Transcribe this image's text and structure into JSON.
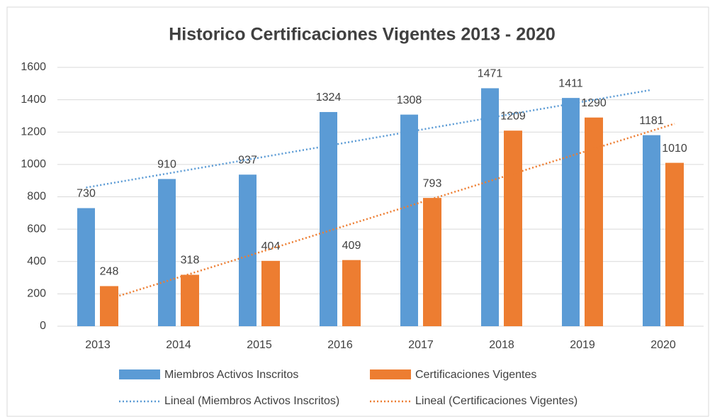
{
  "chart_data": {
    "type": "bar",
    "title": "Historico Certificaciones Vigentes 2013 - 2020",
    "categories": [
      "2013",
      "2014",
      "2015",
      "2016",
      "2017",
      "2018",
      "2019",
      "2020"
    ],
    "series": [
      {
        "name": "Miembros Activos Inscritos",
        "color": "#5b9bd5",
        "values": [
          730,
          910,
          937,
          1324,
          1308,
          1471,
          1411,
          1181
        ],
        "trendline": {
          "name": "Lineal (Miembros Activos Inscritos)",
          "style": "dotted"
        }
      },
      {
        "name": "Certificaciones Vigentes",
        "color": "#ed7d31",
        "values": [
          248,
          318,
          404,
          409,
          793,
          1209,
          1290,
          1010
        ],
        "trendline": {
          "name": "Lineal (Certificaciones Vigentes)",
          "style": "dotted"
        }
      }
    ],
    "ylim": [
      0,
      1600
    ],
    "yticks": [
      0,
      200,
      400,
      600,
      800,
      1000,
      1200,
      1400,
      1600
    ],
    "grid": true,
    "legend": "bottom",
    "data_labels": true
  }
}
